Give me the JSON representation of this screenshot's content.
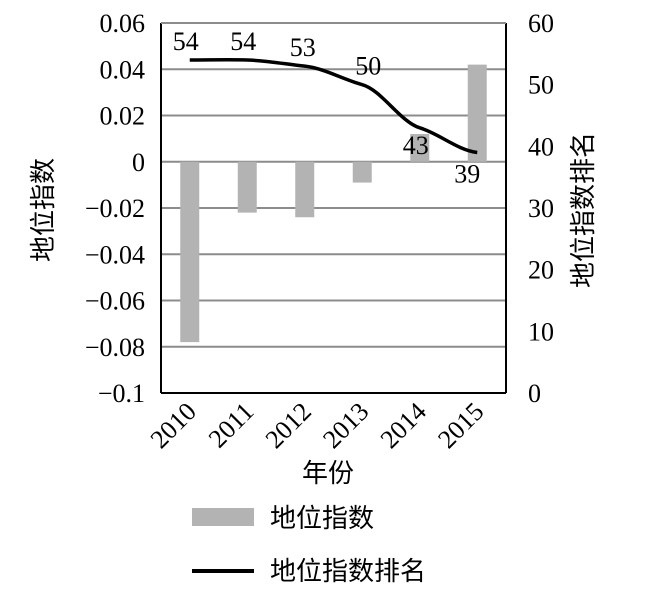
{
  "chart_data": {
    "type": "bar+line",
    "categories": [
      "2010",
      "2011",
      "2012",
      "2013",
      "2014",
      "2015"
    ],
    "xlabel": "年份",
    "ylabel_left": "地位指数",
    "ylabel_right": "地位指数排名",
    "ylim_left": [
      -0.1,
      0.06
    ],
    "ylim_right": [
      0,
      60
    ],
    "yticks_left": [
      "0.06",
      "0.04",
      "0.02",
      "0",
      "−0.02",
      "−0.04",
      "−0.06",
      "−0.08",
      "−0.1"
    ],
    "yticks_right": [
      "60",
      "50",
      "40",
      "30",
      "20",
      "10",
      "0"
    ],
    "grid": true,
    "series": [
      {
        "name": "地位指数",
        "kind": "bar",
        "axis": "left",
        "color": "#b3b3b3",
        "values": [
          -0.078,
          -0.022,
          -0.024,
          -0.009,
          0.012,
          0.042
        ]
      },
      {
        "name": "地位指数排名",
        "kind": "line",
        "axis": "right",
        "color": "#000000",
        "values": [
          54,
          54,
          53,
          50,
          43,
          39
        ],
        "labels": [
          "54",
          "54",
          "53",
          "50",
          "43",
          "39"
        ]
      }
    ],
    "legend_position": "bottom"
  }
}
